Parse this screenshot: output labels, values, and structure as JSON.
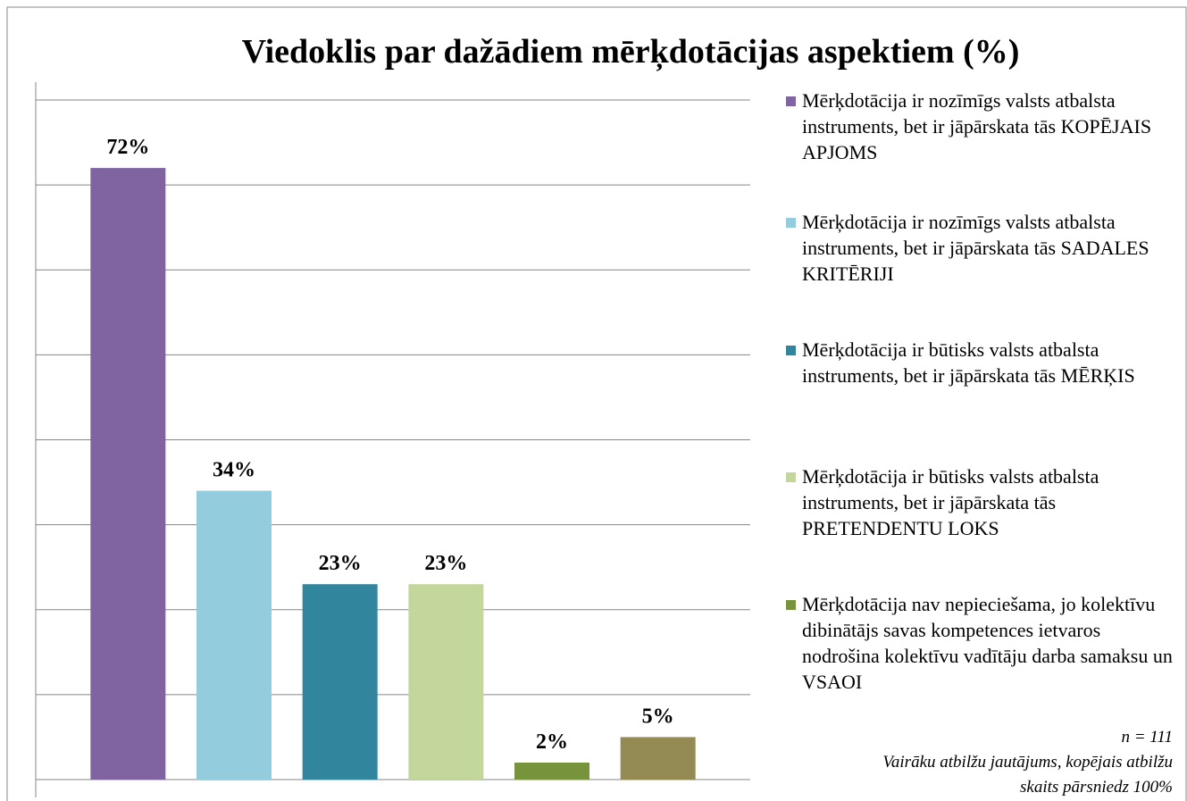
{
  "chart_data": {
    "type": "bar",
    "title": "Viedoklis par dažādiem mērķdotācijas aspektiem (%)",
    "series": [
      {
        "name": "Mērķdotācija ir nozīmīgs valsts atbalsta instruments, bet ir jāpārskata tās KOPĒJAIS APJOMS",
        "color": "#8064a2",
        "values": [
          72
        ],
        "value_labels": [
          "72%"
        ]
      },
      {
        "name": "Mērķdotācija ir nozīmīgs valsts atbalsta instruments, bet ir jāpārskata tās SADALES KRITĒRIJI",
        "color": "#93cddd",
        "values": [
          34
        ],
        "value_labels": [
          "34%"
        ]
      },
      {
        "name": "Mērķdotācija ir būtisks valsts atbalsta instruments, bet ir jāpārskata tās MĒRĶIS",
        "color": "#31859c",
        "values": [
          23
        ],
        "value_labels": [
          "23%"
        ]
      },
      {
        "name": "Mērķdotācija ir būtisks valsts atbalsta instruments, bet ir jāpārskata tās PRETENDENTU LOKS",
        "color": "#c3d69b",
        "values": [
          23
        ],
        "value_labels": [
          "23%"
        ]
      },
      {
        "name": "Mērķdotācija nav nepieciešama, jo kolektīvu dibinātājs savas kompetences ietvaros nodrošina kolektīvu vadītāju darba samaksu un VSAOI",
        "color": "#77933c",
        "values": [
          2
        ],
        "value_labels": [
          "2%"
        ]
      },
      {
        "color": "#948a54",
        "values": [
          5
        ],
        "value_labels": [
          "5%"
        ]
      }
    ],
    "ylim": [
      0,
      80
    ],
    "yticks": [
      0,
      10,
      20,
      30,
      40,
      50,
      60,
      70,
      80
    ],
    "grid": true,
    "legend": "right",
    "notes": [
      "n = 111",
      "Vairāku atbilžu jautājums, kopējais atbilžu skaits pārsniedz 100%"
    ]
  }
}
